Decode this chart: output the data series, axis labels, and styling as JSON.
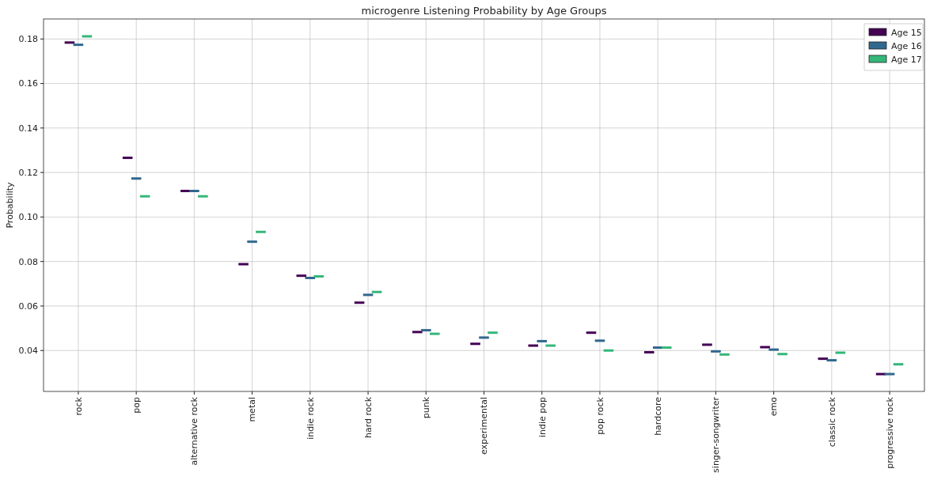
{
  "chart_data": {
    "type": "box",
    "title": "microgenre Listening Probability by Age Groups",
    "ylabel": "Probability",
    "categories": [
      "rock",
      "pop",
      "alternative rock",
      "metal",
      "indie rock",
      "hard rock",
      "punk",
      "experimental",
      "indie pop",
      "pop rock",
      "hardcore",
      "singer-songwriter",
      "emo",
      "classic rock",
      "progressive rock"
    ],
    "ylim": [
      0.0216,
      0.189
    ],
    "yticks": [
      {
        "value": 0.04,
        "label": "0.04"
      },
      {
        "value": 0.06,
        "label": "0.06"
      },
      {
        "value": 0.08,
        "label": "0.08"
      },
      {
        "value": 0.1,
        "label": "0.10"
      },
      {
        "value": 0.12,
        "label": "0.12"
      },
      {
        "value": 0.14,
        "label": "0.14"
      },
      {
        "value": 0.16,
        "label": "0.16"
      },
      {
        "value": 0.18,
        "label": "0.18"
      }
    ],
    "grid": true,
    "legend": "top right",
    "series": [
      {
        "name": "Age 15",
        "color": "#440154",
        "boxes": [
          {
            "low": 0.1784,
            "q1": 0.1784,
            "median": 0.1784,
            "q3": 0.1784,
            "high": 0.1784
          },
          {
            "low": 0.1266,
            "q1": 0.1266,
            "median": 0.1266,
            "q3": 0.1266,
            "high": 0.1266
          },
          {
            "low": 0.1117,
            "q1": 0.1117,
            "median": 0.1117,
            "q3": 0.1117,
            "high": 0.1117
          },
          {
            "low": 0.0788,
            "q1": 0.0788,
            "median": 0.0788,
            "q3": 0.0788,
            "high": 0.0788
          },
          {
            "low": 0.0736,
            "q1": 0.0736,
            "median": 0.0736,
            "q3": 0.0736,
            "high": 0.0736
          },
          {
            "low": 0.0615,
            "q1": 0.0615,
            "median": 0.0615,
            "q3": 0.0615,
            "high": 0.0615
          },
          {
            "low": 0.0483,
            "q1": 0.0483,
            "median": 0.0483,
            "q3": 0.0483,
            "high": 0.0483
          },
          {
            "low": 0.043,
            "q1": 0.043,
            "median": 0.043,
            "q3": 0.043,
            "high": 0.043
          },
          {
            "low": 0.0422,
            "q1": 0.0422,
            "median": 0.0422,
            "q3": 0.0422,
            "high": 0.0422
          },
          {
            "low": 0.048,
            "q1": 0.048,
            "median": 0.048,
            "q3": 0.048,
            "high": 0.048
          },
          {
            "low": 0.0392,
            "q1": 0.0392,
            "median": 0.0392,
            "q3": 0.0392,
            "high": 0.0392
          },
          {
            "low": 0.0426,
            "q1": 0.0426,
            "median": 0.0426,
            "q3": 0.0426,
            "high": 0.0426
          },
          {
            "low": 0.0415,
            "q1": 0.0415,
            "median": 0.0415,
            "q3": 0.0415,
            "high": 0.0415
          },
          {
            "low": 0.0363,
            "q1": 0.0363,
            "median": 0.0363,
            "q3": 0.0363,
            "high": 0.0363
          },
          {
            "low": 0.0294,
            "q1": 0.0294,
            "median": 0.0294,
            "q3": 0.0294,
            "high": 0.0294
          }
        ]
      },
      {
        "name": "Age 16",
        "color": "#31688e",
        "boxes": [
          {
            "low": 0.1774,
            "q1": 0.1774,
            "median": 0.1774,
            "q3": 0.1774,
            "high": 0.1774
          },
          {
            "low": 0.1173,
            "q1": 0.1173,
            "median": 0.1173,
            "q3": 0.1173,
            "high": 0.1173
          },
          {
            "low": 0.1117,
            "q1": 0.1117,
            "median": 0.1117,
            "q3": 0.1117,
            "high": 0.1117
          },
          {
            "low": 0.0889,
            "q1": 0.0889,
            "median": 0.0889,
            "q3": 0.0889,
            "high": 0.0889
          },
          {
            "low": 0.0726,
            "q1": 0.0726,
            "median": 0.0726,
            "q3": 0.0726,
            "high": 0.0726
          },
          {
            "low": 0.065,
            "q1": 0.065,
            "median": 0.065,
            "q3": 0.065,
            "high": 0.065
          },
          {
            "low": 0.0491,
            "q1": 0.0491,
            "median": 0.0491,
            "q3": 0.0491,
            "high": 0.0491
          },
          {
            "low": 0.0458,
            "q1": 0.0458,
            "median": 0.0458,
            "q3": 0.0458,
            "high": 0.0458
          },
          {
            "low": 0.0442,
            "q1": 0.0442,
            "median": 0.0442,
            "q3": 0.0442,
            "high": 0.0442
          },
          {
            "low": 0.0444,
            "q1": 0.0444,
            "median": 0.0444,
            "q3": 0.0444,
            "high": 0.0444
          },
          {
            "low": 0.0413,
            "q1": 0.0413,
            "median": 0.0413,
            "q3": 0.0413,
            "high": 0.0413
          },
          {
            "low": 0.0396,
            "q1": 0.0396,
            "median": 0.0396,
            "q3": 0.0396,
            "high": 0.0396
          },
          {
            "low": 0.0404,
            "q1": 0.0404,
            "median": 0.0404,
            "q3": 0.0404,
            "high": 0.0404
          },
          {
            "low": 0.0356,
            "q1": 0.0356,
            "median": 0.0356,
            "q3": 0.0356,
            "high": 0.0356
          },
          {
            "low": 0.0294,
            "q1": 0.0294,
            "median": 0.0294,
            "q3": 0.0294,
            "high": 0.0294
          }
        ]
      },
      {
        "name": "Age 17",
        "color": "#35b779",
        "boxes": [
          {
            "low": 0.1812,
            "q1": 0.1812,
            "median": 0.1812,
            "q3": 0.1812,
            "high": 0.1812
          },
          {
            "low": 0.1093,
            "q1": 0.1093,
            "median": 0.1093,
            "q3": 0.1093,
            "high": 0.1093
          },
          {
            "low": 0.1093,
            "q1": 0.1093,
            "median": 0.1093,
            "q3": 0.1093,
            "high": 0.1093
          },
          {
            "low": 0.0933,
            "q1": 0.0933,
            "median": 0.0933,
            "q3": 0.0933,
            "high": 0.0933
          },
          {
            "low": 0.0733,
            "q1": 0.0733,
            "median": 0.0733,
            "q3": 0.0733,
            "high": 0.0733
          },
          {
            "low": 0.0663,
            "q1": 0.0663,
            "median": 0.0663,
            "q3": 0.0663,
            "high": 0.0663
          },
          {
            "low": 0.0475,
            "q1": 0.0475,
            "median": 0.0475,
            "q3": 0.0475,
            "high": 0.0475
          },
          {
            "low": 0.048,
            "q1": 0.048,
            "median": 0.048,
            "q3": 0.048,
            "high": 0.048
          },
          {
            "low": 0.0422,
            "q1": 0.0422,
            "median": 0.0422,
            "q3": 0.0422,
            "high": 0.0422
          },
          {
            "low": 0.04,
            "q1": 0.04,
            "median": 0.04,
            "q3": 0.04,
            "high": 0.04
          },
          {
            "low": 0.0413,
            "q1": 0.0413,
            "median": 0.0413,
            "q3": 0.0413,
            "high": 0.0413
          },
          {
            "low": 0.0382,
            "q1": 0.0382,
            "median": 0.0382,
            "q3": 0.0382,
            "high": 0.0382
          },
          {
            "low": 0.0384,
            "q1": 0.0384,
            "median": 0.0384,
            "q3": 0.0384,
            "high": 0.0384
          },
          {
            "low": 0.039,
            "q1": 0.039,
            "median": 0.039,
            "q3": 0.039,
            "high": 0.039
          },
          {
            "low": 0.0338,
            "q1": 0.0338,
            "median": 0.0338,
            "q3": 0.0338,
            "high": 0.0338
          }
        ]
      }
    ]
  }
}
